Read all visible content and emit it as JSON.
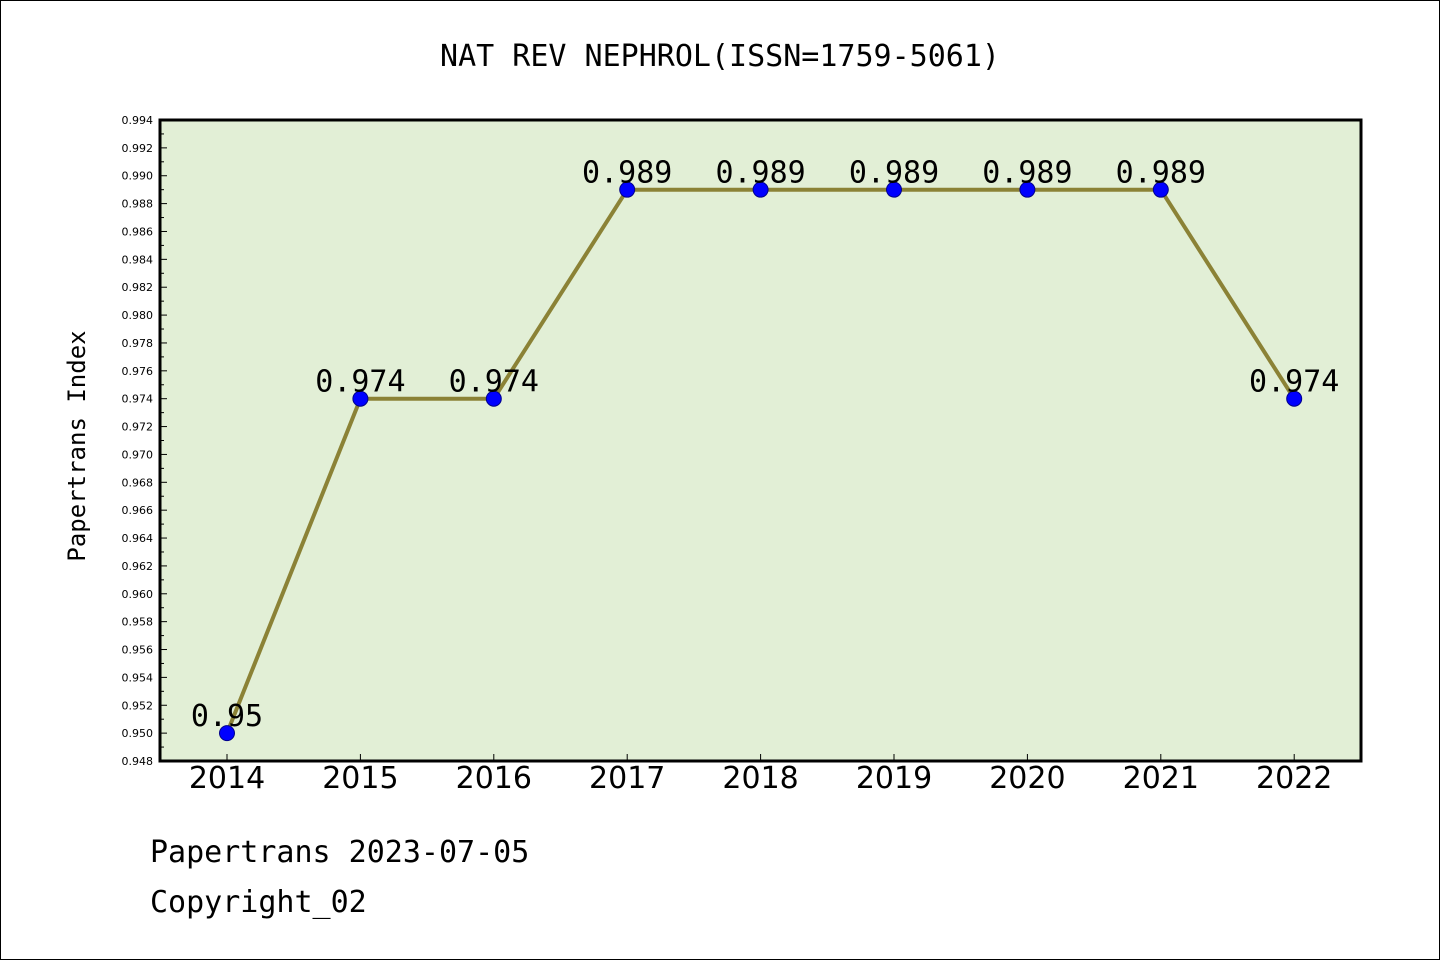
{
  "chart_data": {
    "type": "line",
    "title": "NAT REV NEPHROL(ISSN=1759-5061)",
    "ylabel": "Papertrans Index",
    "xlabel": "",
    "x": [
      "2014",
      "2015",
      "2016",
      "2017",
      "2018",
      "2019",
      "2020",
      "2021",
      "2022"
    ],
    "y": [
      0.95,
      0.974,
      0.974,
      0.989,
      0.989,
      0.989,
      0.989,
      0.989,
      0.974
    ],
    "data_labels": [
      "0.95",
      "0.974",
      "0.974",
      "0.989",
      "0.989",
      "0.989",
      "0.989",
      "0.989",
      "0.974"
    ],
    "ylim": [
      0.948,
      0.994
    ],
    "yticks": [
      "0.948",
      "0.950",
      "0.952",
      "0.954",
      "0.956",
      "0.958",
      "0.960",
      "0.962",
      "0.964",
      "0.966",
      "0.968",
      "0.970",
      "0.972",
      "0.974",
      "0.976",
      "0.978",
      "0.980",
      "0.982",
      "0.984",
      "0.986",
      "0.988",
      "0.990",
      "0.992",
      "0.994"
    ],
    "grid": false,
    "colors": {
      "line": "#8b8236",
      "marker": "#0000ff",
      "plot_bg": "#e2efd6"
    }
  },
  "footer": {
    "line1": "Papertrans 2023-07-05",
    "line2": "Copyright_02"
  }
}
